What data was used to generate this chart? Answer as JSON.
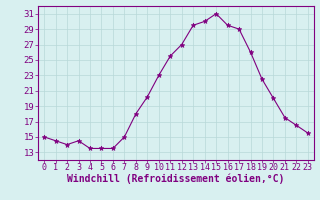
{
  "x": [
    0,
    1,
    2,
    3,
    4,
    5,
    6,
    7,
    8,
    9,
    10,
    11,
    12,
    13,
    14,
    15,
    16,
    17,
    18,
    19,
    20,
    21,
    22,
    23
  ],
  "y": [
    15.0,
    14.5,
    14.0,
    14.5,
    13.5,
    13.5,
    13.5,
    15.0,
    18.0,
    20.2,
    23.0,
    25.5,
    27.0,
    29.5,
    30.0,
    31.0,
    29.5,
    29.0,
    26.0,
    22.5,
    20.0,
    17.5,
    16.5,
    15.5
  ],
  "line_color": "#800080",
  "marker": "*",
  "marker_size": 3.5,
  "xlabel": "Windchill (Refroidissement éolien,°C)",
  "xlabel_fontsize": 7,
  "bg_color": "#d8f0f0",
  "grid_color": "#b8d8d8",
  "tick_color": "#800080",
  "label_color": "#800080",
  "ylim": [
    12,
    32
  ],
  "yticks": [
    13,
    15,
    17,
    19,
    21,
    23,
    25,
    27,
    29,
    31
  ],
  "xlim": [
    -0.5,
    23.5
  ],
  "xticks": [
    0,
    1,
    2,
    3,
    4,
    5,
    6,
    7,
    8,
    9,
    10,
    11,
    12,
    13,
    14,
    15,
    16,
    17,
    18,
    19,
    20,
    21,
    22,
    23
  ],
  "tick_fontsize": 6,
  "ytick_fontsize": 6.5
}
